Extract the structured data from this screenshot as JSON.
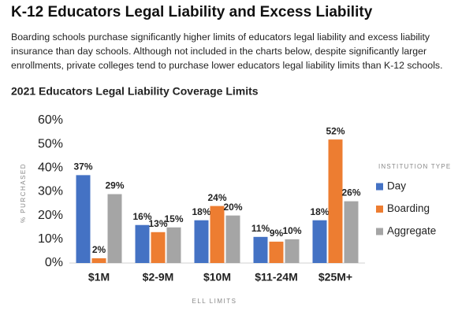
{
  "title": "K-12 Educators Legal Liability and Excess Liability",
  "paragraph_lines": [
    "Boarding schools purchase significantly higher limits of educators legal liability and excess liability",
    "insurance than day schools.  Although not included in the charts below, despite significantly larger",
    "enrollments, private colleges tend to purchase lower educators legal liability limits than K-12 schools."
  ],
  "chart_data": {
    "type": "bar",
    "title": "2021 Educators Legal Liability Coverage Limits",
    "x_label": "ELL LIMITS",
    "y_label": "% PURCHASED",
    "legend_title": "INSTITUTION TYPE",
    "legend": "right",
    "grid": false,
    "categories": [
      "$1M",
      "$2-9M",
      "$10M",
      "$11-24M",
      "$25M+"
    ],
    "series": [
      {
        "name": "Day",
        "color": "#4472c4",
        "values": [
          37,
          16,
          18,
          11,
          18
        ],
        "value_labels": [
          "37%",
          "16%",
          "18%",
          "11%",
          "18%"
        ]
      },
      {
        "name": "Boarding",
        "color": "#ed7d31",
        "values": [
          2,
          13,
          24,
          9,
          52
        ],
        "value_labels": [
          "2%",
          "13%",
          "24%",
          "9%",
          "52%"
        ]
      },
      {
        "name": "Aggregate",
        "color": "#a5a5a5",
        "values": [
          29,
          15,
          20,
          10,
          26
        ],
        "value_labels": [
          "29%",
          "15%",
          "20%",
          "10%",
          "26%"
        ]
      }
    ],
    "ylim": [
      0,
      60
    ],
    "yticks": [
      {
        "value": 0,
        "label": "0%"
      },
      {
        "value": 10,
        "label": "10%"
      },
      {
        "value": 20,
        "label": "20%"
      },
      {
        "value": 30,
        "label": "30%"
      },
      {
        "value": 40,
        "label": "40%"
      },
      {
        "value": 50,
        "label": "50%"
      },
      {
        "value": 60,
        "label": "60%"
      }
    ]
  }
}
